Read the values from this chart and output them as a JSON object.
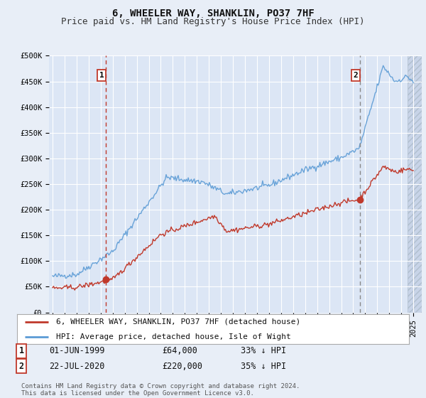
{
  "title": "6, WHEELER WAY, SHANKLIN, PO37 7HF",
  "subtitle": "Price paid vs. HM Land Registry's House Price Index (HPI)",
  "ylabel_ticks": [
    "£0",
    "£50K",
    "£100K",
    "£150K",
    "£200K",
    "£250K",
    "£300K",
    "£350K",
    "£400K",
    "£450K",
    "£500K"
  ],
  "ytick_values": [
    0,
    50000,
    100000,
    150000,
    200000,
    250000,
    300000,
    350000,
    400000,
    450000,
    500000
  ],
  "background_color": "#e8eef7",
  "plot_bg_color": "#dce6f5",
  "grid_color": "#ffffff",
  "hpi_color": "#5b9bd5",
  "price_color": "#c0392b",
  "marker1_year": 1999.42,
  "marker1_price": 64000,
  "marker2_year": 2020.55,
  "marker2_price": 220000,
  "legend_label1": "6, WHEELER WAY, SHANKLIN, PO37 7HF (detached house)",
  "legend_label2": "HPI: Average price, detached house, Isle of Wight",
  "table_row1": [
    "1",
    "01-JUN-1999",
    "£64,000",
    "33% ↓ HPI"
  ],
  "table_row2": [
    "2",
    "22-JUL-2020",
    "£220,000",
    "35% ↓ HPI"
  ],
  "footer": "Contains HM Land Registry data © Crown copyright and database right 2024.\nThis data is licensed under the Open Government Licence v3.0.",
  "title_fontsize": 10,
  "subtitle_fontsize": 9,
  "tick_fontsize": 7.5
}
